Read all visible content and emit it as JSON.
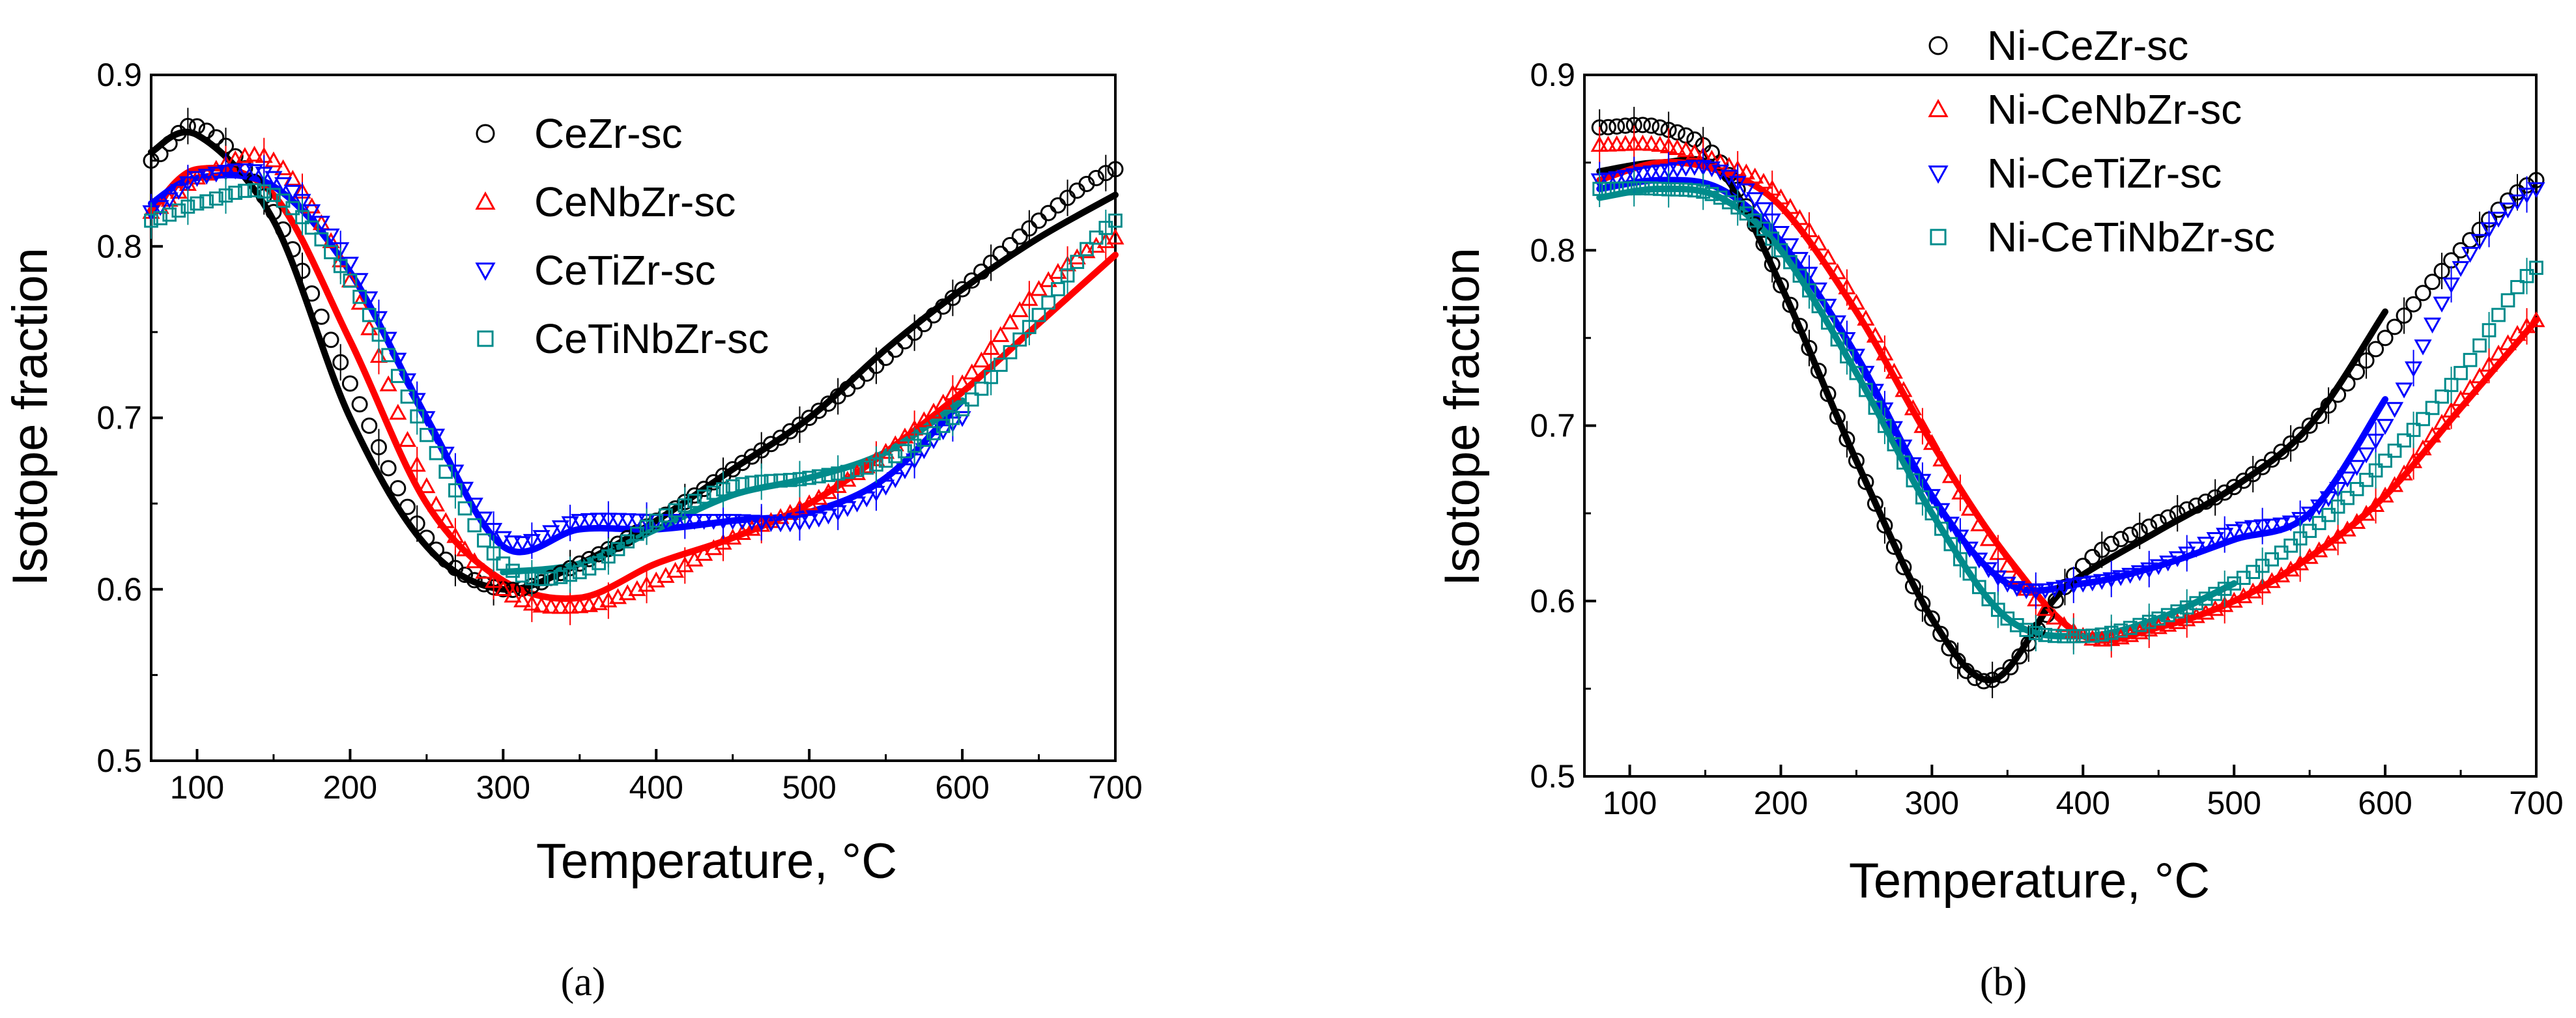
{
  "chart_data": [
    {
      "type": "scatter",
      "panel_label": "(a)",
      "xlabel": "Temperature, °C",
      "ylabel": "Isotope fraction",
      "xlim": [
        70,
        700
      ],
      "ylim": [
        0.5,
        0.9
      ],
      "x_ticks": [
        "100",
        "200",
        "300",
        "400",
        "500",
        "600",
        "700"
      ],
      "y_ticks": [
        "0.5",
        "0.6",
        "0.7",
        "0.8",
        "0.9"
      ],
      "legend_position": "top-right",
      "grid": false,
      "series": [
        {
          "name": "CeZr-sc",
          "marker": "circle",
          "color": "#000000",
          "x": [
            70,
            100,
            150,
            200,
            250,
            300,
            350,
            400,
            450,
            500,
            550,
            600,
            650,
            700
          ],
          "y": [
            0.85,
            0.87,
            0.82,
            0.72,
            0.63,
            0.6,
            0.615,
            0.64,
            0.67,
            0.7,
            0.735,
            0.775,
            0.815,
            0.845
          ],
          "fit_x": [
            70,
            100,
            150,
            200,
            250,
            300,
            350,
            400,
            450,
            500,
            550,
            600,
            650,
            700
          ],
          "fit_y": [
            0.855,
            0.865,
            0.815,
            0.7,
            0.625,
            0.6,
            0.615,
            0.64,
            0.67,
            0.7,
            0.74,
            0.775,
            0.805,
            0.83
          ]
        },
        {
          "name": "CeNbZr-sc",
          "marker": "triangle-up",
          "color": "#ff0000",
          "x": [
            70,
            100,
            150,
            200,
            250,
            300,
            350,
            400,
            450,
            500,
            550,
            600,
            650,
            700
          ],
          "y": [
            0.82,
            0.84,
            0.85,
            0.78,
            0.66,
            0.6,
            0.59,
            0.605,
            0.63,
            0.65,
            0.68,
            0.72,
            0.775,
            0.805
          ],
          "fit_x": [
            70,
            100,
            150,
            200,
            250,
            300,
            350,
            400,
            450,
            500,
            550,
            600,
            650,
            700
          ],
          "fit_y": [
            0.82,
            0.845,
            0.83,
            0.745,
            0.65,
            0.605,
            0.595,
            0.615,
            0.63,
            0.65,
            0.68,
            0.715,
            0.755,
            0.795
          ]
        },
        {
          "name": "CeTiZr-sc",
          "marker": "triangle-down",
          "color": "#0000ff",
          "x": [
            70,
            100,
            150,
            200,
            250,
            300,
            350,
            400,
            450,
            500,
            550,
            600
          ],
          "y": [
            0.82,
            0.84,
            0.84,
            0.79,
            0.7,
            0.63,
            0.64,
            0.64,
            0.64,
            0.64,
            0.66,
            0.7
          ],
          "fit_x": [
            70,
            100,
            150,
            200,
            250,
            300,
            350,
            400,
            450,
            500,
            550,
            600
          ],
          "fit_y": [
            0.825,
            0.84,
            0.835,
            0.785,
            0.7,
            0.625,
            0.635,
            0.635,
            0.64,
            0.645,
            0.665,
            0.71
          ]
        },
        {
          "name": "CeTiNbZr-sc",
          "marker": "square",
          "color": "#008b8b",
          "x": [
            70,
            100,
            150,
            200,
            250,
            300,
            350,
            400,
            450,
            500,
            550,
            600,
            650,
            700
          ],
          "y": [
            0.815,
            0.825,
            0.83,
            0.78,
            0.69,
            0.615,
            0.61,
            0.64,
            0.66,
            0.665,
            0.675,
            0.705,
            0.76,
            0.815
          ],
          "fit_x": [
            300,
            350,
            400,
            450,
            500,
            550,
            600
          ],
          "fit_y": [
            0.61,
            0.615,
            0.635,
            0.655,
            0.665,
            0.68,
            0.71
          ]
        }
      ]
    },
    {
      "type": "scatter",
      "panel_label": "(b)",
      "xlabel": "Temperature, °C",
      "ylabel": "Isotope fraction",
      "xlim": [
        70,
        700
      ],
      "ylim": [
        0.5,
        0.9
      ],
      "x_ticks": [
        "100",
        "200",
        "300",
        "400",
        "500",
        "600",
        "700"
      ],
      "y_ticks": [
        "0.5",
        "0.6",
        "0.7",
        "0.8",
        "0.9"
      ],
      "legend_position": "top-right",
      "grid": false,
      "series": [
        {
          "name": "Ni-CeZr-sc",
          "marker": "circle",
          "color": "#000000",
          "x": [
            80,
            120,
            160,
            200,
            250,
            300,
            340,
            400,
            450,
            500,
            550,
            600,
            650,
            700
          ],
          "y": [
            0.87,
            0.87,
            0.85,
            0.78,
            0.68,
            0.59,
            0.555,
            0.62,
            0.645,
            0.665,
            0.7,
            0.75,
            0.8,
            0.84
          ],
          "fit_x": [
            80,
            120,
            160,
            200,
            250,
            300,
            340,
            380,
            400,
            450,
            500,
            550,
            600
          ],
          "fit_y": [
            0.845,
            0.85,
            0.845,
            0.78,
            0.68,
            0.59,
            0.555,
            0.6,
            0.615,
            0.64,
            0.665,
            0.7,
            0.765
          ]
        },
        {
          "name": "Ni-CeNbZr-sc",
          "marker": "triangle-up",
          "color": "#ff0000",
          "x": [
            80,
            120,
            160,
            200,
            250,
            300,
            350,
            400,
            450,
            500,
            550,
            600,
            650,
            700
          ],
          "y": [
            0.86,
            0.86,
            0.85,
            0.83,
            0.77,
            0.69,
            0.62,
            0.58,
            0.585,
            0.6,
            0.625,
            0.66,
            0.715,
            0.76
          ],
          "fit_x": [
            80,
            120,
            160,
            200,
            250,
            300,
            350,
            400,
            450,
            500,
            550,
            600,
            650,
            700
          ],
          "fit_y": [
            0.84,
            0.85,
            0.845,
            0.825,
            0.765,
            0.69,
            0.625,
            0.58,
            0.585,
            0.6,
            0.625,
            0.66,
            0.71,
            0.76
          ]
        },
        {
          "name": "Ni-CeTiZr-sc",
          "marker": "triangle-down",
          "color": "#0000ff",
          "x": [
            80,
            120,
            160,
            200,
            250,
            300,
            350,
            400,
            450,
            500,
            550,
            600,
            650,
            700
          ],
          "y": [
            0.84,
            0.845,
            0.845,
            0.81,
            0.74,
            0.66,
            0.61,
            0.61,
            0.62,
            0.64,
            0.65,
            0.7,
            0.79,
            0.835
          ],
          "fit_x": [
            80,
            120,
            160,
            200,
            250,
            300,
            350,
            400,
            450,
            500,
            550,
            600
          ],
          "fit_y": [
            0.835,
            0.84,
            0.835,
            0.805,
            0.74,
            0.66,
            0.61,
            0.61,
            0.62,
            0.635,
            0.65,
            0.715
          ]
        },
        {
          "name": "Ni-CeTiNbZr-sc",
          "marker": "square",
          "color": "#008b8b",
          "x": [
            80,
            120,
            160,
            200,
            250,
            300,
            350,
            400,
            450,
            500,
            550,
            600,
            650,
            700
          ],
          "y": [
            0.835,
            0.835,
            0.83,
            0.8,
            0.73,
            0.65,
            0.59,
            0.58,
            0.59,
            0.61,
            0.64,
            0.68,
            0.73,
            0.79
          ],
          "fit_x": [
            80,
            120,
            160,
            200,
            250,
            300,
            350,
            400,
            450,
            500
          ],
          "fit_y": [
            0.83,
            0.835,
            0.83,
            0.8,
            0.73,
            0.65,
            0.59,
            0.58,
            0.59,
            0.61
          ]
        }
      ]
    }
  ]
}
